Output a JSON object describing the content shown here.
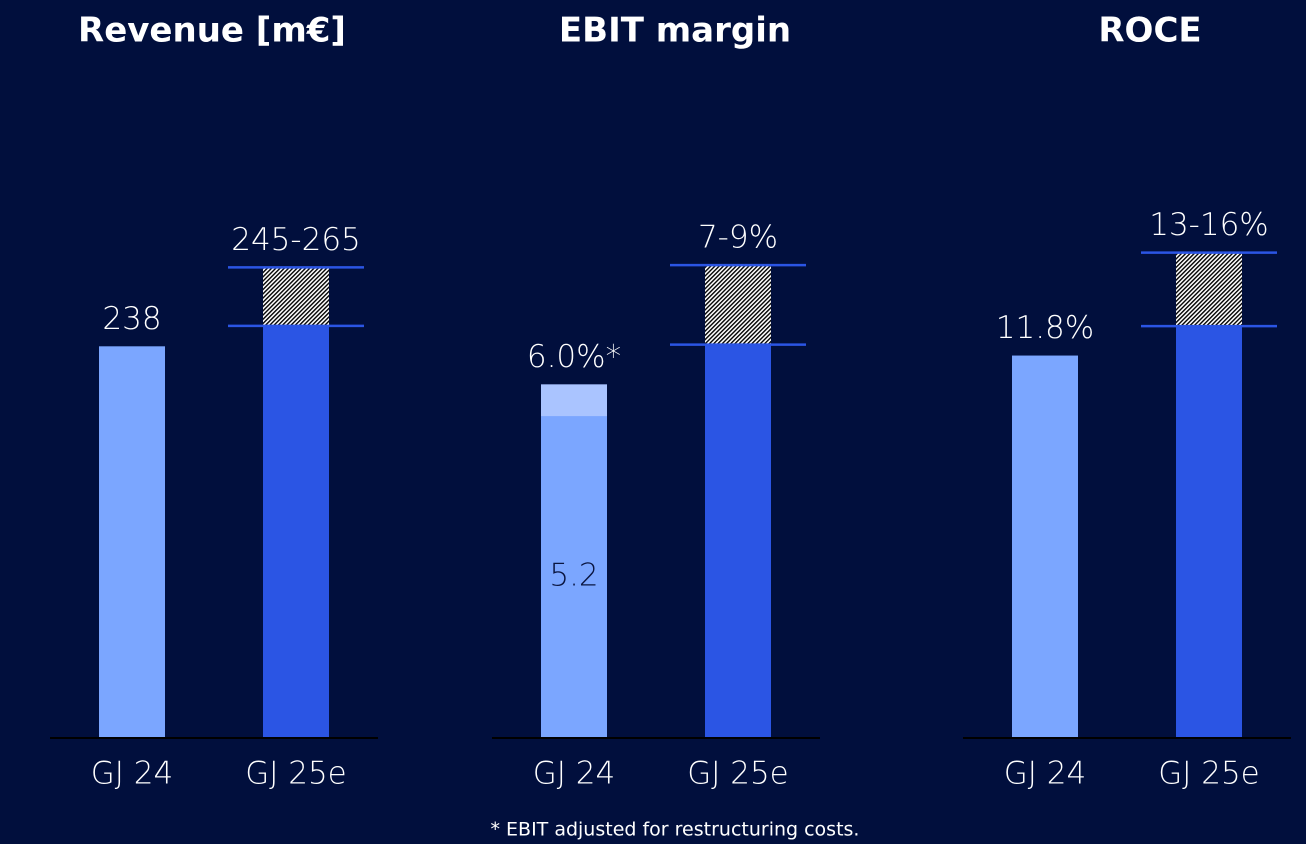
{
  "chart_data": [
    {
      "type": "bar",
      "title": "Revenue [m€]",
      "categories": [
        "GJ 24",
        "GJ 25e"
      ],
      "values": [
        238,
        null
      ],
      "value_labels": [
        "238",
        "245-265"
      ],
      "ranges": [
        null,
        {
          "low": 245,
          "high": 265
        }
      ],
      "colors": [
        "#7ba6ff",
        "#2b55e4"
      ],
      "ylim": [
        104,
        312
      ]
    },
    {
      "type": "bar",
      "title": "EBIT margin",
      "categories": [
        "GJ 24",
        "GJ 25e"
      ],
      "values": [
        6.0,
        null
      ],
      "value_labels": [
        "6.0%*",
        "7-9%"
      ],
      "inner_values": [
        5.2,
        null
      ],
      "inner_color": "#7ba6ff",
      "ranges": [
        null,
        {
          "low": 7,
          "high": 9
        }
      ],
      "colors": [
        "#aac4ff",
        "#2b55e4"
      ],
      "ylim": [
        -2.9,
        12.4
      ]
    },
    {
      "type": "bar",
      "title": "ROCE",
      "categories": [
        "GJ 24",
        "GJ 25e"
      ],
      "values": [
        11.8,
        null
      ],
      "value_labels": [
        "11.8%",
        "13-16%"
      ],
      "ranges": [
        null,
        {
          "low": 13,
          "high": 16
        }
      ],
      "colors": [
        "#7ba6ff",
        "#2b55e4"
      ],
      "ylim": [
        -3.8,
        21
      ]
    }
  ],
  "footnote": "* EBIT adjusted for restructuring costs."
}
